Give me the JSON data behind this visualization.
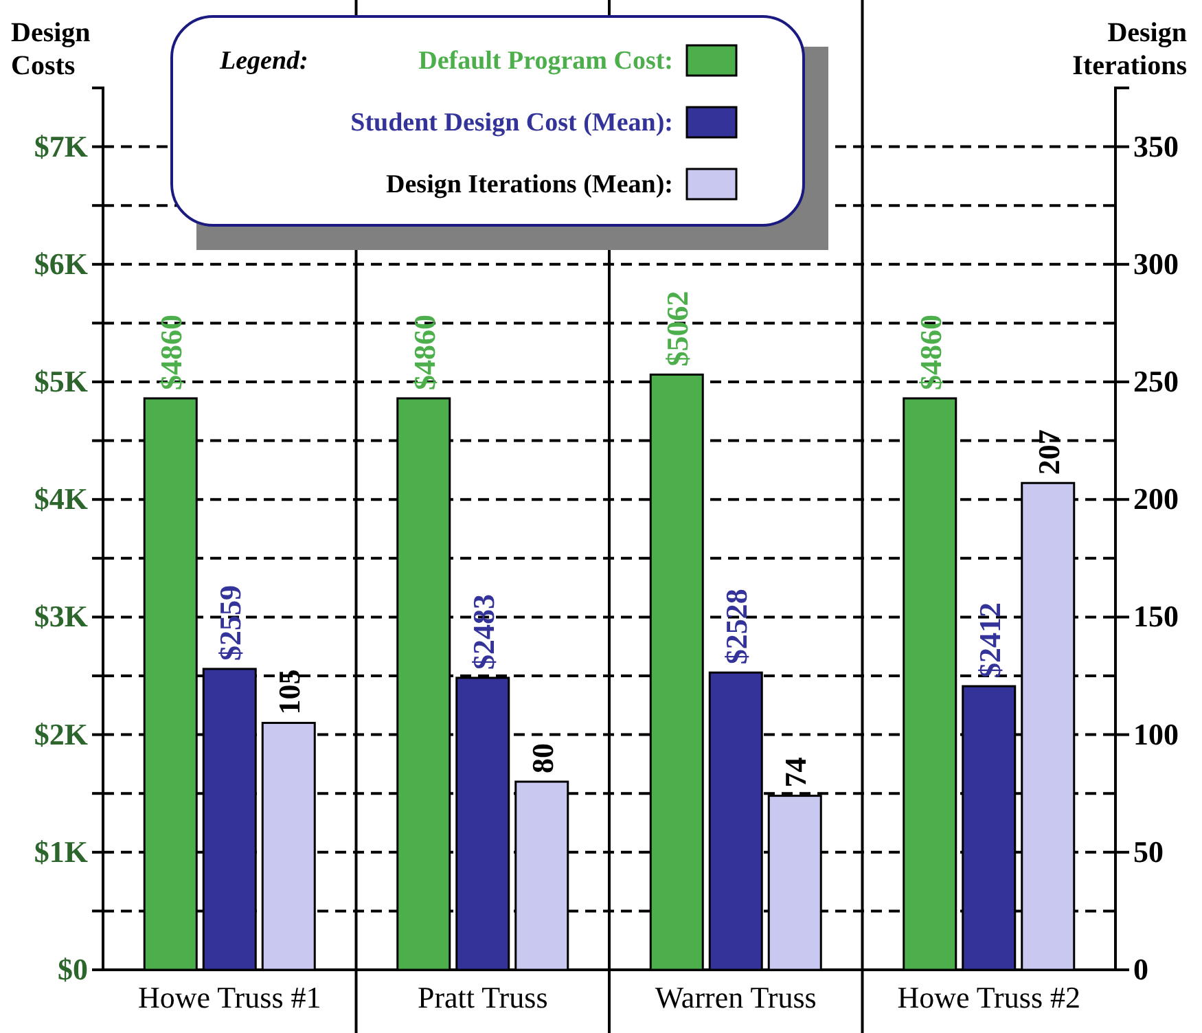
{
  "chart_data": {
    "type": "bar",
    "ylabel": "Design Costs",
    "y2label": "Design Iterations",
    "legend_title": "Legend:",
    "legend": "top",
    "grid": "y",
    "categories": [
      "Howe Truss #1",
      "Pratt Truss",
      "Warren Truss",
      "Howe Truss #2"
    ],
    "ylim": [
      0,
      7500
    ],
    "yticks": [
      {
        "value": 0,
        "label": "$0"
      },
      {
        "value": 500,
        "label": null
      },
      {
        "value": 1000,
        "label": "$1K"
      },
      {
        "value": 1500,
        "label": null
      },
      {
        "value": 2000,
        "label": "$2K"
      },
      {
        "value": 2500,
        "label": null
      },
      {
        "value": 3000,
        "label": "$3K"
      },
      {
        "value": 3500,
        "label": null
      },
      {
        "value": 4000,
        "label": "$4K"
      },
      {
        "value": 4500,
        "label": null
      },
      {
        "value": 5000,
        "label": "$5K"
      },
      {
        "value": 5500,
        "label": null
      },
      {
        "value": 6000,
        "label": "$6K"
      },
      {
        "value": 6500,
        "label": null
      },
      {
        "value": 7000,
        "label": "$7K"
      }
    ],
    "y2lim": [
      0,
      375
    ],
    "y2ticks": [
      0,
      50,
      100,
      150,
      200,
      250,
      300,
      350
    ],
    "series": [
      {
        "name": "Default Program Cost:",
        "color": "#4caf4c",
        "values": [
          4860,
          4860,
          5062,
          4860
        ],
        "value_labels": [
          "$4860",
          "$4860",
          "$5062",
          "$4860"
        ]
      },
      {
        "name": "Student Design Cost (Mean):",
        "color": "#333399",
        "values": [
          2559,
          2483,
          2528,
          2412
        ],
        "value_labels": [
          "$2559",
          "$2483",
          "$2528",
          "$2412"
        ]
      },
      {
        "name": "Design Iterations (Mean):",
        "color": "#c8c8f0",
        "axis": "y2",
        "values": [
          105,
          80,
          74,
          207
        ],
        "value_labels": [
          "105",
          "80",
          "74",
          "207"
        ]
      }
    ]
  }
}
